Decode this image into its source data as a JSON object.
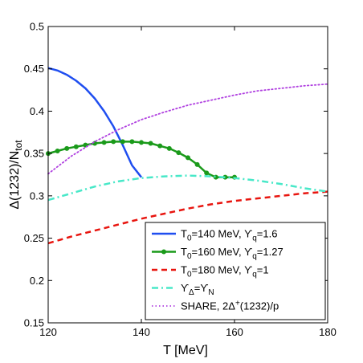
{
  "chart_data": {
    "type": "line",
    "xlabel": "T [MeV]",
    "ylabel": {
      "main": "Δ(1232)/N",
      "sub": "tot"
    },
    "xlim": [
      120,
      180
    ],
    "ylim": [
      0.15,
      0.5
    ],
    "x_ticks": [
      "120",
      "140",
      "160",
      "180"
    ],
    "y_ticks": [
      "0.15",
      "0.2",
      "0.25",
      "0.3",
      "0.35",
      "0.4",
      "0.45",
      "0.5"
    ],
    "grid": false,
    "legend_position": "bottom-right",
    "series": [
      {
        "legend": {
          "parts": [
            [
              "T",
              ""
            ],
            [
              "0",
              "sub"
            ],
            [
              "=140 MeV, ϒ",
              ""
            ],
            [
              "q",
              "sub"
            ],
            [
              "=1.6",
              ""
            ]
          ]
        },
        "color": "#1f4ef0",
        "style": "solid",
        "markers": false,
        "x": [
          120,
          122,
          124,
          126,
          128,
          130,
          132,
          134,
          136,
          138,
          140
        ],
        "y": [
          0.451,
          0.448,
          0.443,
          0.436,
          0.427,
          0.415,
          0.4,
          0.382,
          0.36,
          0.336,
          0.322
        ]
      },
      {
        "legend": {
          "parts": [
            [
              "T",
              ""
            ],
            [
              "0",
              "sub"
            ],
            [
              "=160 MeV, ϒ",
              ""
            ],
            [
              "q",
              "sub"
            ],
            [
              "=1.27",
              ""
            ]
          ]
        },
        "color": "#1a9a1a",
        "style": "solid",
        "markers": true,
        "x": [
          120,
          122,
          124,
          126,
          128,
          130,
          132,
          134,
          136,
          138,
          140,
          142,
          144,
          146,
          148,
          150,
          152,
          154,
          156,
          158,
          160
        ],
        "y": [
          0.35,
          0.353,
          0.356,
          0.358,
          0.36,
          0.362,
          0.363,
          0.364,
          0.364,
          0.364,
          0.363,
          0.362,
          0.359,
          0.356,
          0.351,
          0.345,
          0.337,
          0.327,
          0.322,
          0.322,
          0.322
        ]
      },
      {
        "legend": {
          "parts": [
            [
              "T",
              ""
            ],
            [
              "0",
              "sub"
            ],
            [
              "=180 MeV, ϒ",
              ""
            ],
            [
              "q",
              "sub"
            ],
            [
              "=1",
              ""
            ]
          ]
        },
        "color": "#e8150f",
        "style": "dashed",
        "markers": false,
        "x": [
          120,
          125,
          130,
          135,
          140,
          145,
          150,
          155,
          160,
          165,
          170,
          175,
          180
        ],
        "y": [
          0.244,
          0.252,
          0.259,
          0.266,
          0.273,
          0.279,
          0.285,
          0.29,
          0.294,
          0.297,
          0.3,
          0.303,
          0.305
        ]
      },
      {
        "legend": {
          "parts": [
            [
              "ϒ",
              ""
            ],
            [
              "Δ",
              "sub"
            ],
            [
              "=ϒ",
              ""
            ],
            [
              "N",
              "sub"
            ]
          ]
        },
        "color": "#48e8c8",
        "style": "dashdot",
        "markers": false,
        "x": [
          120,
          125,
          130,
          135,
          140,
          145,
          150,
          155,
          160,
          165,
          170,
          175,
          180
        ],
        "y": [
          0.295,
          0.303,
          0.311,
          0.317,
          0.321,
          0.323,
          0.324,
          0.323,
          0.321,
          0.318,
          0.314,
          0.309,
          0.305
        ]
      },
      {
        "legend": {
          "parts": [
            [
              "SHARE, 2Δ",
              ""
            ],
            [
              "+",
              "sup"
            ],
            [
              "(1232)/p",
              ""
            ]
          ]
        },
        "color": "#b040e0",
        "style": "dotted",
        "markers": false,
        "x": [
          120,
          125,
          130,
          135,
          140,
          145,
          150,
          155,
          160,
          165,
          170,
          175,
          180
        ],
        "y": [
          0.326,
          0.347,
          0.364,
          0.378,
          0.39,
          0.399,
          0.407,
          0.413,
          0.419,
          0.424,
          0.427,
          0.43,
          0.432
        ]
      }
    ]
  }
}
